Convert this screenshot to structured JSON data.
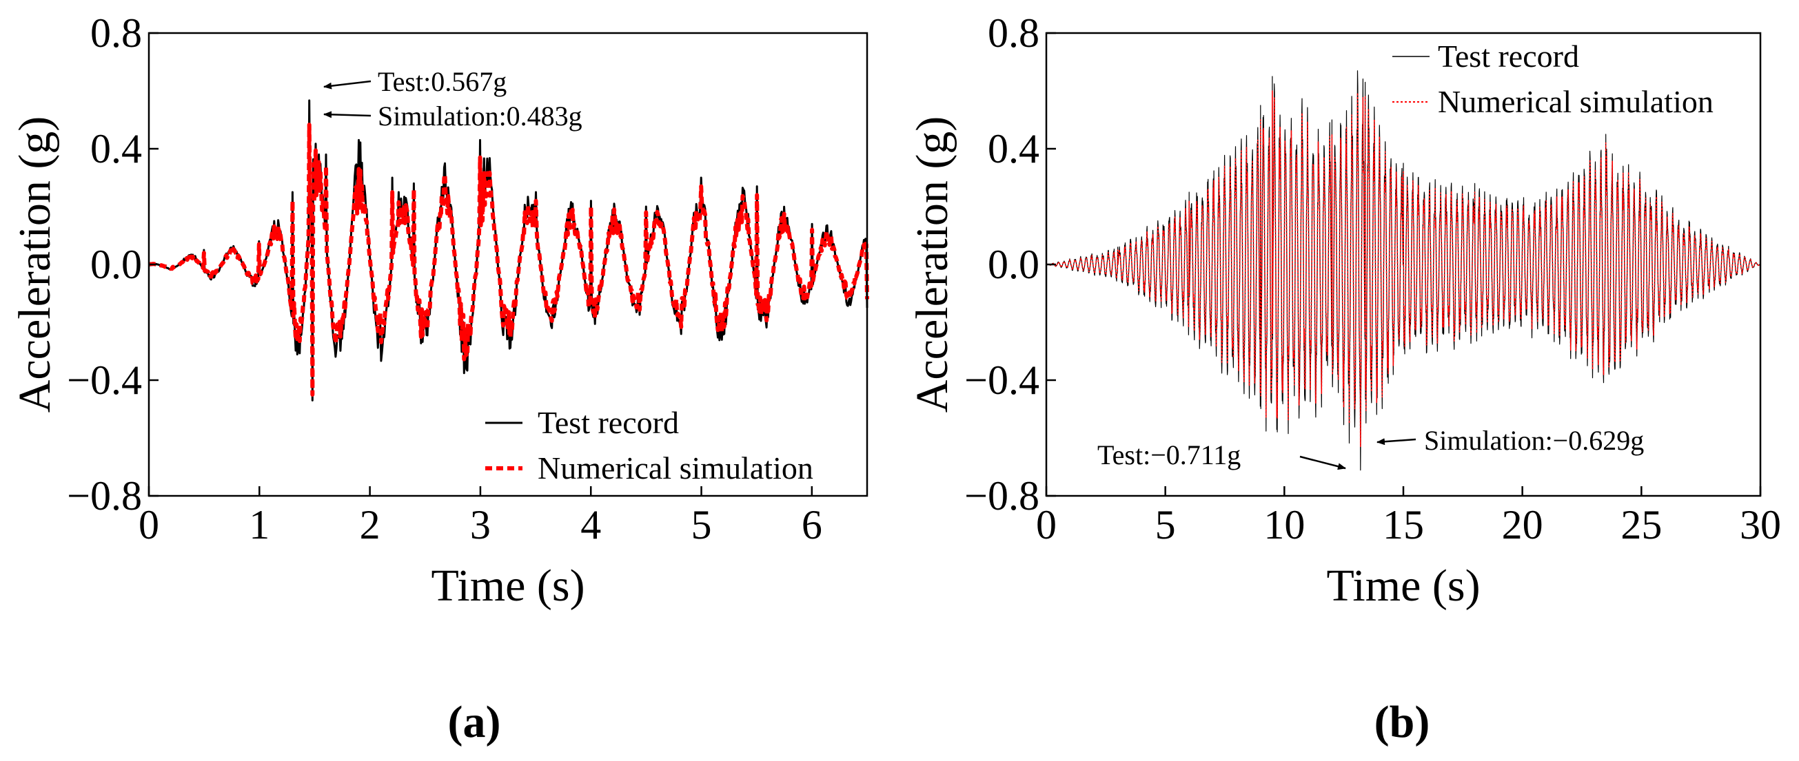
{
  "colors": {
    "test": "#000000",
    "simulation": "#ff0000",
    "background": "#ffffff"
  },
  "panels": [
    {
      "label": "(a)"
    },
    {
      "label": "(b)"
    }
  ],
  "chart_data": [
    {
      "type": "line",
      "xlabel": "Time (s)",
      "ylabel": "Acceleration (g)",
      "xlim": [
        0,
        6.5
      ],
      "ylim": [
        -0.8,
        0.8
      ],
      "xticks": [
        "0",
        "1",
        "2",
        "3",
        "4",
        "5",
        "6"
      ],
      "yticks": [
        "0.8",
        "0.4",
        "0.0",
        "−0.4",
        "−0.8"
      ],
      "grid": false,
      "legend_position": "bottom-right",
      "series": [
        {
          "name": "Test record",
          "style": "solid",
          "x": [
            0,
            0.5,
            1.0,
            1.3,
            1.45,
            1.48,
            1.6,
            1.9,
            2.2,
            2.4,
            3.0,
            3.5,
            4.0,
            4.5,
            5.0,
            5.5,
            6.0,
            6.5
          ],
          "values": [
            0.0,
            0.05,
            0.08,
            0.25,
            0.567,
            -0.47,
            0.38,
            0.43,
            0.3,
            0.28,
            0.43,
            0.25,
            0.22,
            0.2,
            0.3,
            0.27,
            0.14,
            -0.15
          ]
        },
        {
          "name": "Numerical simulation",
          "style": "dashed",
          "x": [
            0,
            0.5,
            1.0,
            1.3,
            1.45,
            1.48,
            1.6,
            1.9,
            2.2,
            2.4,
            3.0,
            3.5,
            4.0,
            4.5,
            5.0,
            5.5,
            6.0,
            6.5
          ],
          "values": [
            0.0,
            0.04,
            0.07,
            0.22,
            0.483,
            -0.45,
            0.34,
            0.33,
            0.25,
            0.26,
            0.37,
            0.22,
            0.2,
            0.18,
            0.27,
            0.24,
            0.12,
            -0.12
          ]
        }
      ],
      "annotations": [
        {
          "text": "Test:0.567g",
          "x": 1.48,
          "y": 0.567
        },
        {
          "text": "Simulation:0.483g",
          "x": 1.48,
          "y": 0.483
        }
      ]
    },
    {
      "type": "line",
      "xlabel": "Time (s)",
      "ylabel": "Acceleration (g)",
      "xlim": [
        0,
        30
      ],
      "ylim": [
        -0.8,
        0.8
      ],
      "xticks": [
        "0",
        "5",
        "10",
        "15",
        "20",
        "25",
        "30"
      ],
      "yticks": [
        "0.8",
        "0.4",
        "0.0",
        "−0.4",
        "−0.8"
      ],
      "grid": false,
      "legend_position": "top-right",
      "series": [
        {
          "name": "Test record",
          "style": "solid",
          "x": [
            0,
            3,
            6,
            9,
            9.5,
            12,
            13.2,
            13.4,
            15,
            18,
            21,
            23.5,
            27,
            30
          ],
          "values": [
            0.0,
            0.06,
            0.25,
            0.55,
            0.65,
            0.5,
            -0.711,
            0.63,
            0.35,
            0.28,
            0.25,
            0.45,
            0.15,
            0.0
          ]
        },
        {
          "name": "Numerical simulation",
          "style": "dotted",
          "x": [
            0,
            3,
            6,
            9,
            9.5,
            12,
            13.2,
            13.4,
            15,
            18,
            21,
            23.5,
            27,
            30
          ],
          "values": [
            0.0,
            0.05,
            0.22,
            0.5,
            0.6,
            0.45,
            -0.629,
            0.58,
            0.32,
            0.25,
            0.22,
            0.42,
            0.13,
            0.0
          ]
        }
      ],
      "annotations": [
        {
          "text": "Test:−0.711g",
          "x": 13.2,
          "y": -0.711
        },
        {
          "text": "Simulation:−0.629g",
          "x": 13.2,
          "y": -0.629
        }
      ]
    }
  ]
}
